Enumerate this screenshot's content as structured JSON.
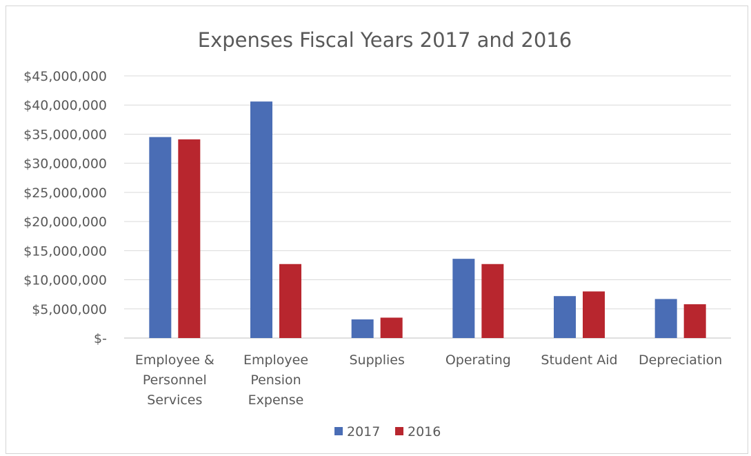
{
  "chart_data": {
    "type": "bar",
    "title": "Expenses Fiscal Years 2017 and 2016",
    "categories": [
      [
        "Employee &",
        "Personnel",
        "Services"
      ],
      [
        "Employee",
        "Pension",
        "Expense"
      ],
      [
        "Supplies"
      ],
      [
        "Operating"
      ],
      [
        "Student Aid"
      ],
      [
        "Depreciation"
      ]
    ],
    "series": [
      {
        "name": "2017",
        "color": "#4A6DB5",
        "values": [
          34500000,
          40600000,
          3200000,
          13600000,
          7200000,
          6700000
        ]
      },
      {
        "name": "2016",
        "color": "#B8262E",
        "values": [
          34100000,
          12700000,
          3500000,
          12700000,
          8000000,
          5800000
        ]
      }
    ],
    "ylim": [
      0,
      45000000
    ],
    "yticks": [
      0,
      5000000,
      10000000,
      15000000,
      20000000,
      25000000,
      30000000,
      35000000,
      40000000,
      45000000
    ],
    "ytick_labels": [
      "$-",
      "$5,000,000",
      "$10,000,000",
      "$15,000,000",
      "$20,000,000",
      "$25,000,000",
      "$30,000,000",
      "$35,000,000",
      "$40,000,000",
      "$45,000,000"
    ],
    "grid": true,
    "legend_position": "bottom"
  }
}
